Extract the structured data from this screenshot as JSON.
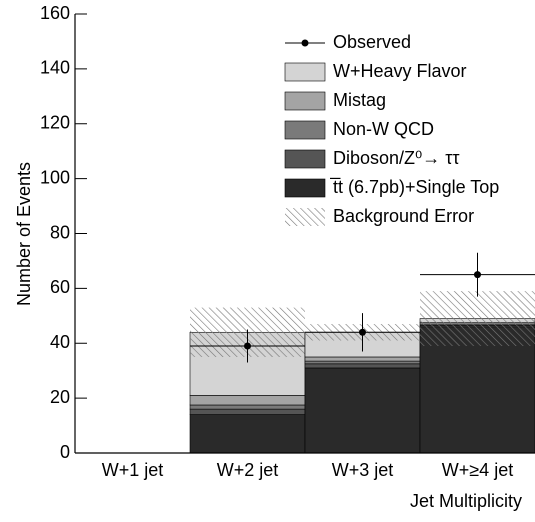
{
  "chart_data": {
    "type": "stacked_histogram",
    "x_label": "Jet Multiplicity",
    "y_label": "Number of Events",
    "categories": [
      "W+1 jet",
      "W+2 jet",
      "W+3 jet",
      "W+≥4 jet"
    ],
    "ylim": [
      0,
      160
    ],
    "yticks": [
      0,
      20,
      40,
      60,
      80,
      100,
      120,
      140,
      160
    ],
    "series": [
      {
        "name": "t̅t (6.7pb)+Single Top",
        "color": "#2a2a2a",
        "values": [
          0,
          14,
          31,
          46
        ]
      },
      {
        "name": "Diboson/Z⁰→ ττ",
        "color": "#555555",
        "values": [
          0,
          2,
          1.5,
          0.5
        ]
      },
      {
        "name": "Non-W QCD",
        "color": "#7a7a7a",
        "values": [
          0,
          1.5,
          1,
          0.5
        ]
      },
      {
        "name": "Mistag",
        "color": "#a4a4a4",
        "values": [
          0,
          3.5,
          1.5,
          0.5
        ]
      },
      {
        "name": "W+Heavy Flavor",
        "color": "#d4d4d4",
        "values": [
          0,
          23,
          9,
          1.5
        ]
      }
    ],
    "observed": {
      "name": "Observed",
      "values": [
        null,
        39,
        44,
        65
      ],
      "errors": [
        null,
        6,
        7,
        8
      ]
    },
    "background_error": {
      "name": "Background Error",
      "values": [
        null,
        9,
        3,
        10
      ]
    }
  }
}
